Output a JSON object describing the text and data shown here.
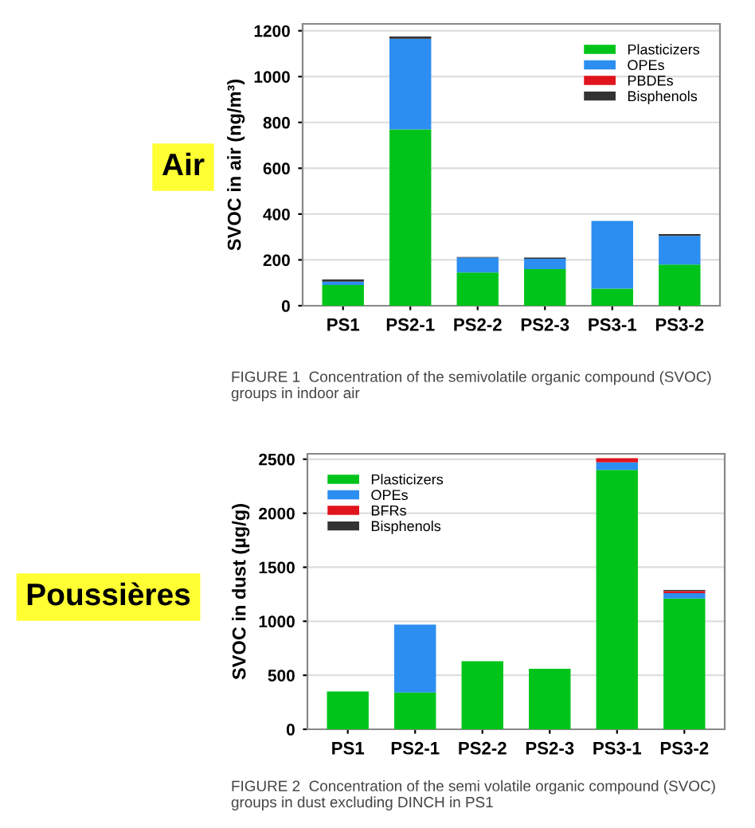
{
  "chart_data": [
    {
      "type": "bar",
      "title": "Air",
      "ylabel": "SVOC in air (ng/m³)",
      "categories": [
        "PS1",
        "PS2-1",
        "PS2-2",
        "PS2-3",
        "PS3-1",
        "PS3-2"
      ],
      "stacked": true,
      "ylim": [
        0,
        1230
      ],
      "yticks": [
        0,
        200,
        400,
        600,
        800,
        1000,
        1200
      ],
      "grid": "y",
      "legend": "top right",
      "series": [
        {
          "name": "Plasticizers",
          "color": "#00c41a",
          "values": [
            90,
            770,
            145,
            160,
            75,
            180
          ]
        },
        {
          "name": "OPEs",
          "color": "#2b8ef0",
          "values": [
            15,
            395,
            65,
            45,
            295,
            125
          ]
        },
        {
          "name": "PBDEs",
          "color": "#e0141c",
          "values": [
            0,
            0,
            0,
            0,
            0,
            0
          ]
        },
        {
          "name": "Bisphenols",
          "color": "#333333",
          "values": [
            10,
            10,
            3,
            5,
            0,
            8
          ]
        }
      ],
      "annotations": [
        "FIGURE 1  Concentration of the semivolatile organic compound (SVOC) groups in indoor air"
      ]
    },
    {
      "type": "bar",
      "title": "Poussières",
      "ylabel": "SVOC in dust (µg/g)",
      "categories": [
        "PS1",
        "PS2-1",
        "PS2-2",
        "PS2-3",
        "PS3-1",
        "PS3-2"
      ],
      "stacked": true,
      "ylim": [
        0,
        2550
      ],
      "yticks": [
        0,
        500,
        1000,
        1500,
        2000,
        2500
      ],
      "grid": "y",
      "legend": "top left",
      "series": [
        {
          "name": "Plasticizers",
          "color": "#00c41a",
          "values": [
            350,
            340,
            630,
            560,
            2400,
            1210
          ]
        },
        {
          "name": "OPEs",
          "color": "#2b8ef0",
          "values": [
            0,
            630,
            0,
            0,
            70,
            50
          ]
        },
        {
          "name": "BFRs",
          "color": "#e0141c",
          "values": [
            0,
            0,
            0,
            0,
            40,
            20
          ]
        },
        {
          "name": "Bisphenols",
          "color": "#333333",
          "values": [
            0,
            null,
            0,
            0,
            null,
            10
          ]
        }
      ],
      "annotations": [
        "FIGURE 2  Concentration of the semi volatile organic compound (SVOC) groups in dust excluding DINCH in PS1"
      ]
    }
  ]
}
